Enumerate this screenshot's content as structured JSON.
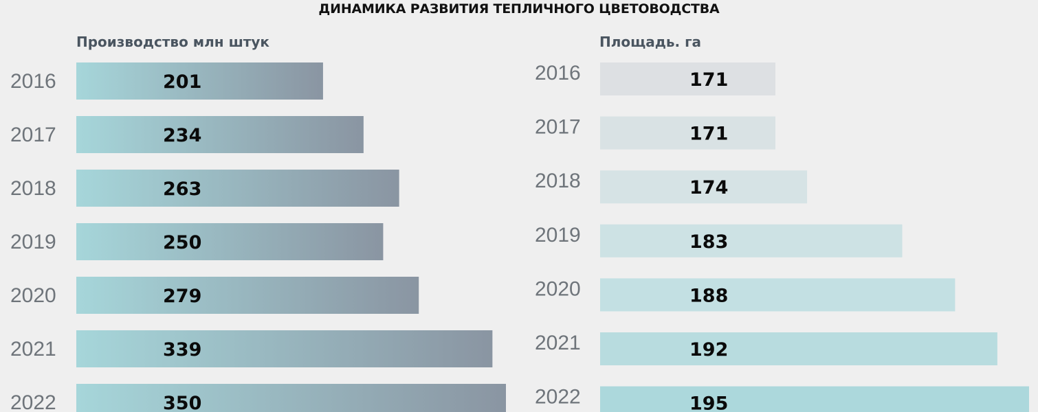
{
  "title": "ДИНАМИКА РАЗВИТИЯ ТЕПЛИЧНОГО ЦВЕТОВОДСТВА",
  "chart_data": [
    {
      "type": "bar",
      "subtitle": "Производство млн штук",
      "categories": [
        "2016",
        "2017",
        "2018",
        "2019",
        "2020",
        "2021",
        "2022"
      ],
      "values": [
        201,
        234,
        263,
        250,
        279,
        339,
        350
      ],
      "gradient": [
        "#a6d6da",
        "#8a95a2"
      ]
    },
    {
      "type": "bar",
      "subtitle": "Площадь. га",
      "categories": [
        "2016",
        "2017",
        "2018",
        "2019",
        "2020",
        "2021",
        "2022"
      ],
      "values": [
        171,
        171,
        174,
        183,
        188,
        192,
        195
      ],
      "colors": [
        "#dde0e3",
        "#d9e2e4",
        "#d6e3e5",
        "#cde2e4",
        "#c3e0e3",
        "#b8dcdf",
        "#acd8dc"
      ]
    }
  ]
}
